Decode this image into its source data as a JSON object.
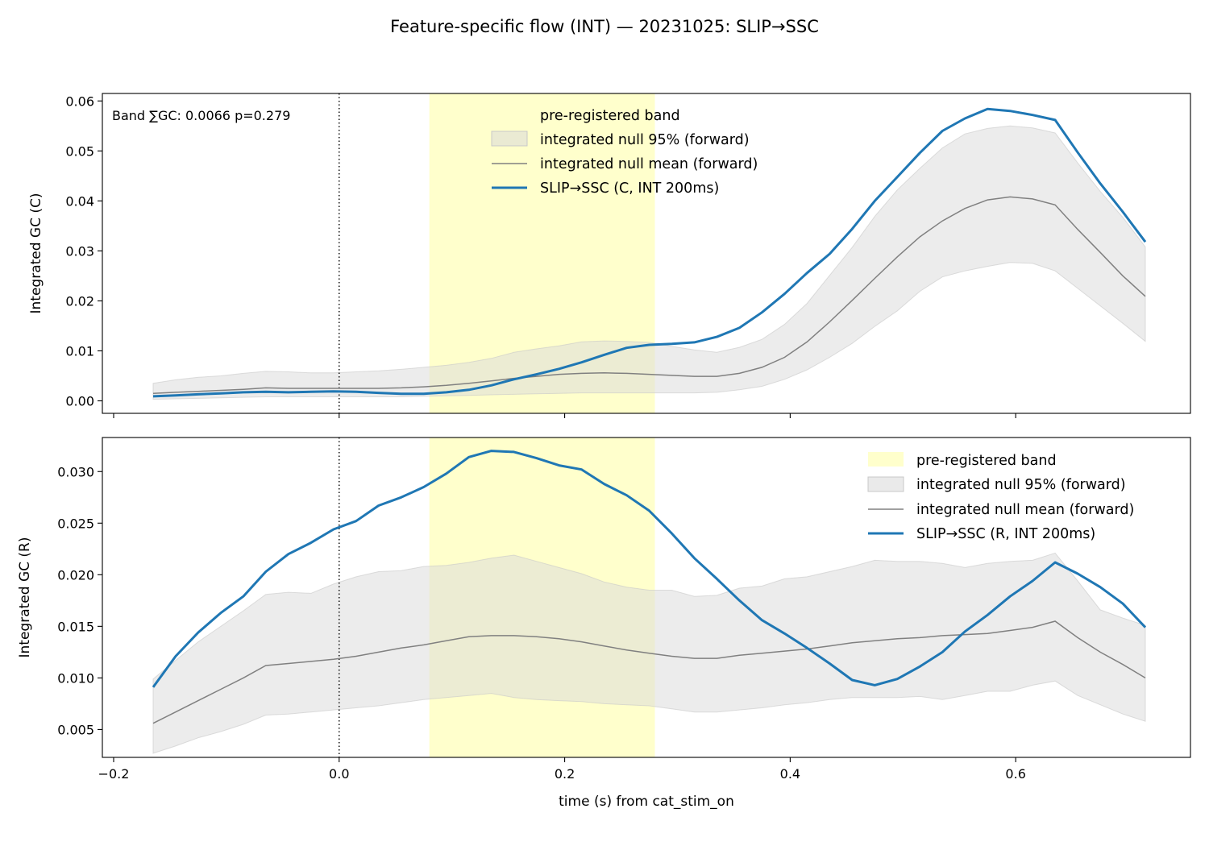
{
  "title": "Feature-specific flow (INT) — 20231025: SLIP→SSC",
  "colors": {
    "series": "#1f77b4",
    "null_mean": "#808080",
    "null_band": "#d9d9d9",
    "pre_band": "#ffffcc",
    "axis": "#000000"
  },
  "chart_data": [
    {
      "type": "line",
      "ylabel": "Integrated GC (C)",
      "xlabel": "",
      "xlim": [
        -0.21,
        0.755
      ],
      "ylim": [
        -0.0025,
        0.0615
      ],
      "yticks": [
        0.0,
        0.01,
        0.02,
        0.03,
        0.04,
        0.05,
        0.06
      ],
      "ytick_labels": [
        "0.00",
        "0.01",
        "0.02",
        "0.03",
        "0.04",
        "0.05",
        "0.06"
      ],
      "xticks": [
        -0.2,
        0.0,
        0.2,
        0.4,
        0.6
      ],
      "xtick_labels": [
        "",
        "",
        "",
        "",
        ""
      ],
      "vline_x": 0.0,
      "band_x": [
        0.08,
        0.28
      ],
      "annotation": "Band ∑GC: 0.0066  p=0.279",
      "legend_position": "top-center",
      "legend": {
        "band": "pre-registered band",
        "null95": "integrated null 95% (forward)",
        "null_mean": "integrated null mean (forward)",
        "series": "SLIP→SSC (C, INT 200ms)"
      },
      "x": [
        -0.165,
        -0.145,
        -0.125,
        -0.105,
        -0.085,
        -0.065,
        -0.045,
        -0.025,
        -0.005,
        0.015,
        0.035,
        0.055,
        0.075,
        0.095,
        0.115,
        0.135,
        0.155,
        0.175,
        0.195,
        0.215,
        0.235,
        0.255,
        0.275,
        0.295,
        0.315,
        0.335,
        0.355,
        0.375,
        0.395,
        0.415,
        0.435,
        0.455,
        0.475,
        0.495,
        0.515,
        0.535,
        0.555,
        0.575,
        0.595,
        0.615,
        0.635,
        0.655,
        0.675,
        0.695,
        0.715
      ],
      "series_values": [
        0.0009,
        0.0011,
        0.0013,
        0.0015,
        0.0017,
        0.0018,
        0.0017,
        0.0018,
        0.0019,
        0.0018,
        0.0016,
        0.0014,
        0.0014,
        0.0017,
        0.0022,
        0.0031,
        0.0043,
        0.0053,
        0.0064,
        0.0077,
        0.0092,
        0.0106,
        0.0112,
        0.0114,
        0.0117,
        0.0128,
        0.0146,
        0.0177,
        0.0214,
        0.0256,
        0.0294,
        0.0344,
        0.04,
        0.0448,
        0.0496,
        0.054,
        0.0565,
        0.0584,
        0.058,
        0.0572,
        0.0562,
        0.0497,
        0.0435,
        0.0378,
        0.0318
      ],
      "null_mean": [
        0.0015,
        0.0017,
        0.0019,
        0.0021,
        0.0023,
        0.0026,
        0.0025,
        0.0025,
        0.0025,
        0.0025,
        0.0025,
        0.0026,
        0.0028,
        0.0031,
        0.0035,
        0.004,
        0.0045,
        0.0049,
        0.0053,
        0.0055,
        0.0056,
        0.0055,
        0.0053,
        0.0051,
        0.0049,
        0.0049,
        0.0055,
        0.0067,
        0.0087,
        0.0118,
        0.0158,
        0.0201,
        0.0245,
        0.0288,
        0.0328,
        0.036,
        0.0385,
        0.0402,
        0.0408,
        0.0404,
        0.0392,
        0.0343,
        0.0297,
        0.025,
        0.0209
      ],
      "null_lo": [
        0.0003,
        0.0004,
        0.0005,
        0.0006,
        0.0007,
        0.0008,
        0.0008,
        0.0008,
        0.0008,
        0.0008,
        0.0008,
        0.0008,
        0.0009,
        0.001,
        0.0011,
        0.0012,
        0.0013,
        0.0014,
        0.0015,
        0.0016,
        0.0016,
        0.0016,
        0.0016,
        0.0016,
        0.0016,
        0.0017,
        0.0022,
        0.0029,
        0.0043,
        0.0062,
        0.0087,
        0.0115,
        0.0149,
        0.018,
        0.0219,
        0.0248,
        0.026,
        0.0269,
        0.0277,
        0.0275,
        0.026,
        0.0225,
        0.019,
        0.0155,
        0.0119
      ],
      "null_hi": [
        0.0035,
        0.0042,
        0.0047,
        0.005,
        0.0055,
        0.0059,
        0.0058,
        0.0056,
        0.0056,
        0.0058,
        0.006,
        0.0063,
        0.0067,
        0.0071,
        0.0077,
        0.0085,
        0.0097,
        0.0104,
        0.011,
        0.0118,
        0.012,
        0.0119,
        0.0117,
        0.0109,
        0.0102,
        0.0097,
        0.0107,
        0.0123,
        0.0153,
        0.0195,
        0.0251,
        0.0307,
        0.0369,
        0.0422,
        0.0465,
        0.0506,
        0.0534,
        0.0545,
        0.055,
        0.0546,
        0.0536,
        0.0476,
        0.0419,
        0.0367,
        0.0308
      ]
    },
    {
      "type": "line",
      "ylabel": "Integrated GC (R)",
      "xlabel": "time (s) from cat_stim_on",
      "xlim": [
        -0.21,
        0.755
      ],
      "ylim": [
        0.0023,
        0.0333
      ],
      "yticks": [
        0.005,
        0.01,
        0.015,
        0.02,
        0.025,
        0.03
      ],
      "ytick_labels": [
        "0.005",
        "0.010",
        "0.015",
        "0.020",
        "0.025",
        "0.030"
      ],
      "xticks": [
        -0.2,
        0.0,
        0.2,
        0.4,
        0.6
      ],
      "xtick_labels": [
        "−0.2",
        "0.0",
        "0.2",
        "0.4",
        "0.6"
      ],
      "vline_x": 0.0,
      "band_x": [
        0.08,
        0.28
      ],
      "legend_position": "top-right",
      "legend": {
        "band": "pre-registered band",
        "null95": "integrated null 95% (forward)",
        "null_mean": "integrated null mean (forward)",
        "series": "SLIP→SSC (R, INT 200ms)"
      },
      "x": [
        -0.165,
        -0.145,
        -0.125,
        -0.105,
        -0.085,
        -0.065,
        -0.045,
        -0.025,
        -0.005,
        0.015,
        0.035,
        0.055,
        0.075,
        0.095,
        0.115,
        0.135,
        0.155,
        0.175,
        0.195,
        0.215,
        0.235,
        0.255,
        0.275,
        0.295,
        0.315,
        0.335,
        0.355,
        0.375,
        0.395,
        0.415,
        0.435,
        0.455,
        0.475,
        0.495,
        0.515,
        0.535,
        0.555,
        0.575,
        0.595,
        0.615,
        0.635,
        0.655,
        0.675,
        0.695,
        0.715
      ],
      "series_values": [
        0.0091,
        0.0121,
        0.0144,
        0.0163,
        0.0179,
        0.0203,
        0.022,
        0.0231,
        0.0244,
        0.0252,
        0.0267,
        0.0275,
        0.0285,
        0.0298,
        0.0314,
        0.032,
        0.0319,
        0.0313,
        0.0306,
        0.0302,
        0.0288,
        0.0277,
        0.0262,
        0.024,
        0.0216,
        0.0196,
        0.0175,
        0.0156,
        0.0143,
        0.0129,
        0.0114,
        0.0098,
        0.0093,
        0.0099,
        0.0111,
        0.0125,
        0.0145,
        0.0161,
        0.0179,
        0.0194,
        0.0212,
        0.0201,
        0.0188,
        0.0172,
        0.0149
      ],
      "null_mean": [
        0.0056,
        0.0067,
        0.0078,
        0.0089,
        0.01,
        0.0112,
        0.0114,
        0.0116,
        0.0118,
        0.0121,
        0.0125,
        0.0129,
        0.0132,
        0.0136,
        0.014,
        0.0141,
        0.0141,
        0.014,
        0.0138,
        0.0135,
        0.0131,
        0.0127,
        0.0124,
        0.0121,
        0.0119,
        0.0119,
        0.0122,
        0.0124,
        0.0126,
        0.0128,
        0.0131,
        0.0134,
        0.0136,
        0.0138,
        0.0139,
        0.0141,
        0.0142,
        0.0143,
        0.0146,
        0.0149,
        0.0155,
        0.0139,
        0.0125,
        0.0113,
        0.01
      ],
      "null_lo": [
        0.0027,
        0.0034,
        0.0042,
        0.0048,
        0.0055,
        0.0064,
        0.0065,
        0.0067,
        0.0069,
        0.0071,
        0.0073,
        0.0076,
        0.0079,
        0.0081,
        0.0083,
        0.0085,
        0.0081,
        0.0079,
        0.0078,
        0.0077,
        0.0075,
        0.0074,
        0.0073,
        0.007,
        0.0067,
        0.0067,
        0.0069,
        0.0071,
        0.0074,
        0.0076,
        0.0079,
        0.0081,
        0.0081,
        0.0081,
        0.0082,
        0.0079,
        0.0083,
        0.0087,
        0.0087,
        0.0093,
        0.0097,
        0.0083,
        0.0074,
        0.0065,
        0.0058
      ],
      "null_hi": [
        0.0099,
        0.0117,
        0.0135,
        0.015,
        0.0165,
        0.0181,
        0.0183,
        0.0182,
        0.0191,
        0.0198,
        0.0203,
        0.0204,
        0.0208,
        0.0209,
        0.0212,
        0.0216,
        0.0219,
        0.0213,
        0.0207,
        0.0201,
        0.0193,
        0.0188,
        0.0185,
        0.0185,
        0.0179,
        0.018,
        0.0187,
        0.0189,
        0.0196,
        0.0198,
        0.0203,
        0.0208,
        0.0214,
        0.0213,
        0.0213,
        0.0211,
        0.0207,
        0.0211,
        0.0213,
        0.0214,
        0.0221,
        0.0194,
        0.0166,
        0.0158,
        0.0151
      ]
    }
  ]
}
